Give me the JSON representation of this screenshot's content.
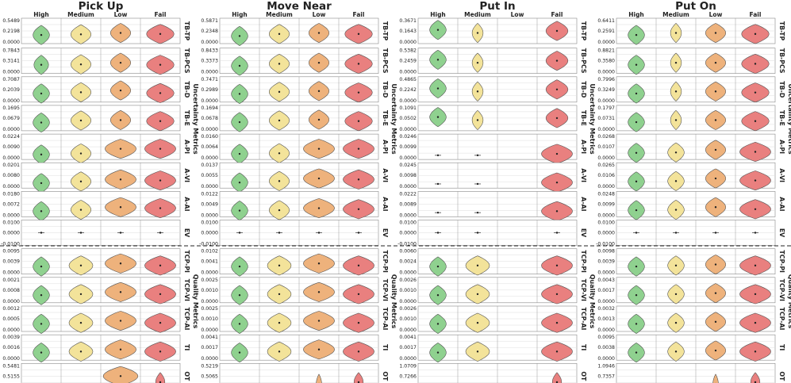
{
  "chart_data": {
    "type": "violin-grid",
    "tasks": [
      "Pick Up",
      "Move Near",
      "Put In",
      "Put On"
    ],
    "categories": [
      "High",
      "Medium",
      "Low",
      "Fail"
    ],
    "colors": {
      "High": "#8fd18f",
      "Medium": "#f3e39a",
      "Low": "#eeb27c",
      "Fail": "#e9807f"
    },
    "group_labels": {
      "uncertainty": "Uncertainty Metrics",
      "quality": "Quality Metrics"
    },
    "metrics": [
      {
        "name": "TB-TP",
        "group": "uncertainty"
      },
      {
        "name": "TB-PCS",
        "group": "uncertainty"
      },
      {
        "name": "TB-D",
        "group": "uncertainty"
      },
      {
        "name": "TB-E",
        "group": "uncertainty"
      },
      {
        "name": "A-PI",
        "group": "uncertainty"
      },
      {
        "name": "A-VI",
        "group": "uncertainty"
      },
      {
        "name": "A-AI",
        "group": "uncertainty"
      },
      {
        "name": "EV",
        "group": "uncertainty"
      },
      {
        "name": "TCP-PI",
        "group": "quality"
      },
      {
        "name": "TCP-VI",
        "group": "quality"
      },
      {
        "name": "TCP-AI",
        "group": "quality"
      },
      {
        "name": "TI",
        "group": "quality"
      },
      {
        "name": "OT",
        "group": "quality"
      }
    ],
    "ticks": [
      [
        [
          "0.5489",
          "0.2198",
          "0.0000"
        ],
        [
          "0.7843",
          "0.3141",
          "0.0000"
        ],
        [
          "0.7087",
          "0.2039",
          "0.0000"
        ],
        [
          "0.1695",
          "0.0679",
          "0.0000"
        ],
        [
          "0.0224",
          "0.0090",
          "0.0000"
        ],
        [
          "0.0201",
          "0.0080",
          "0.0000"
        ],
        [
          "0.0180",
          "0.0072",
          "0.0000"
        ],
        [
          "0.0100",
          "0.0000",
          "-0.0100"
        ],
        [
          "0.0095",
          "0.0039",
          "0.0000"
        ],
        [
          "0.0021",
          "0.0008",
          "0.0000"
        ],
        [
          "0.0012",
          "0.0005",
          "0.0000"
        ],
        [
          "0.0039",
          "0.0016",
          "0.0000"
        ],
        [
          "0.5481",
          "0.5155",
          "0.4830"
        ]
      ],
      [
        [
          "0.5871",
          "0.2348",
          "0.0000"
        ],
        [
          "0.8433",
          "0.3373",
          "0.0000"
        ],
        [
          "0.7471",
          "0.2989",
          "0.0000"
        ],
        [
          "0.1694",
          "0.0678",
          "0.0000"
        ],
        [
          "0.0160",
          "0.0064",
          "0.0000"
        ],
        [
          "0.0137",
          "0.0055",
          "0.0000"
        ],
        [
          "0.0122",
          "0.0049",
          "0.0000"
        ],
        [
          "0.0100",
          "0.0000",
          "-0.0100"
        ],
        [
          "0.0102",
          "0.0041",
          "0.0000"
        ],
        [
          "0.0025",
          "0.0010",
          "0.0000"
        ],
        [
          "0.0025",
          "0.0010",
          "0.0000"
        ],
        [
          "0.0041",
          "0.0017",
          "0.0000"
        ],
        [
          "0.5219",
          "0.5065",
          "0.4910"
        ]
      ],
      [
        [
          "0.3671",
          "0.1643",
          "0.0000"
        ],
        [
          "0.5382",
          "0.2459",
          "0.0000"
        ],
        [
          "0.4865",
          "0.2242",
          "0.0000"
        ],
        [
          "0.1091",
          "0.0502",
          "0.0000"
        ],
        [
          "0.0246",
          "0.0099",
          "0.0000"
        ],
        [
          "0.0245",
          "0.0098",
          "0.0000"
        ],
        [
          "0.0222",
          "0.0089",
          "0.0000"
        ],
        [
          "0.0100",
          "0.0000",
          "-0.0100"
        ],
        [
          "0.0060",
          "0.0024",
          "0.0000"
        ],
        [
          "0.0026",
          "0.0010",
          "0.0000"
        ],
        [
          "0.0026",
          "0.0010",
          "0.0000"
        ],
        [
          "0.0041",
          "0.0017",
          "0.0000"
        ],
        [
          "1.0709",
          "0.7266",
          "0.3823"
        ]
      ],
      [
        [
          "0.6411",
          "0.2591",
          "0.0000"
        ],
        [
          "0.8821",
          "0.3580",
          "0.0000"
        ],
        [
          "0.7996",
          "0.3249",
          "0.0000"
        ],
        [
          "0.1797",
          "0.0731",
          "0.0000"
        ],
        [
          "0.0268",
          "0.0107",
          "0.0000"
        ],
        [
          "0.0265",
          "0.0106",
          "0.0000"
        ],
        [
          "0.0248",
          "0.0099",
          "0.0000"
        ],
        [
          "0.0100",
          "0.0000",
          "-0.0100"
        ],
        [
          "0.0098",
          "0.0039",
          "0.0000"
        ],
        [
          "0.0043",
          "0.0017",
          "0.0000"
        ],
        [
          "0.0032",
          "0.0013",
          "0.0000"
        ],
        [
          "0.0095",
          "0.0038",
          "0.0000"
        ],
        [
          "1.0946",
          "0.7357",
          "0.3768"
        ]
      ]
    ],
    "violins": [
      [
        [
          [
            0.3,
            0.45
          ],
          [
            0.33,
            0.55
          ],
          [
            0.4,
            0.55
          ],
          [
            0.35,
            0.75
          ]
        ],
        [
          [
            0.3,
            0.4
          ],
          [
            0.32,
            0.55
          ],
          [
            0.4,
            0.55
          ],
          [
            0.3,
            0.75
          ]
        ],
        [
          [
            0.3,
            0.45
          ],
          [
            0.36,
            0.55
          ],
          [
            0.45,
            0.55
          ],
          [
            0.32,
            0.75
          ]
        ],
        [
          [
            0.28,
            0.45
          ],
          [
            0.38,
            0.55
          ],
          [
            0.4,
            0.55
          ],
          [
            0.35,
            0.75
          ]
        ],
        [
          [
            0.12,
            0.45
          ],
          [
            0.17,
            0.55
          ],
          [
            0.4,
            0.85
          ],
          [
            0.4,
            0.85
          ]
        ],
        [
          [
            0.12,
            0.45
          ],
          [
            0.2,
            0.55
          ],
          [
            0.3,
            0.85
          ],
          [
            0.25,
            0.85
          ]
        ],
        [
          [
            0.15,
            0.45
          ],
          [
            0.22,
            0.55
          ],
          [
            0.35,
            0.85
          ],
          [
            0.3,
            0.85
          ]
        ],
        [
          [
            0.5,
            0.02
          ],
          [
            0.5,
            0.02
          ],
          [
            0.5,
            0.02
          ],
          [
            0.5,
            0.02
          ]
        ],
        [
          [
            0.25,
            0.45
          ],
          [
            0.3,
            0.65
          ],
          [
            0.4,
            0.85
          ],
          [
            0.3,
            0.85
          ]
        ],
        [
          [
            0.25,
            0.45
          ],
          [
            0.3,
            0.65
          ],
          [
            0.4,
            0.85
          ],
          [
            0.3,
            0.85
          ]
        ],
        [
          [
            0.25,
            0.45
          ],
          [
            0.3,
            0.65
          ],
          [
            0.4,
            0.85
          ],
          [
            0.3,
            0.85
          ]
        ],
        [
          [
            0.25,
            0.45
          ],
          [
            0.3,
            0.65
          ],
          [
            0.4,
            0.85
          ],
          [
            0.3,
            0.85
          ]
        ],
        [
          [
            0.1,
            0.03
          ],
          [
            0.1,
            0.03
          ],
          [
            0.5,
            0.95
          ],
          [
            0.2,
            0.25
          ]
        ]
      ],
      [
        [
          [
            0.25,
            0.45
          ],
          [
            0.35,
            0.55
          ],
          [
            0.4,
            0.55
          ],
          [
            0.35,
            0.75
          ]
        ],
        [
          [
            0.25,
            0.45
          ],
          [
            0.35,
            0.55
          ],
          [
            0.4,
            0.55
          ],
          [
            0.35,
            0.75
          ]
        ],
        [
          [
            0.28,
            0.45
          ],
          [
            0.38,
            0.55
          ],
          [
            0.42,
            0.55
          ],
          [
            0.35,
            0.75
          ]
        ],
        [
          [
            0.3,
            0.45
          ],
          [
            0.38,
            0.55
          ],
          [
            0.42,
            0.55
          ],
          [
            0.35,
            0.75
          ]
        ],
        [
          [
            0.15,
            0.45
          ],
          [
            0.18,
            0.55
          ],
          [
            0.4,
            0.85
          ],
          [
            0.4,
            0.85
          ]
        ],
        [
          [
            0.15,
            0.45
          ],
          [
            0.22,
            0.55
          ],
          [
            0.35,
            0.85
          ],
          [
            0.3,
            0.85
          ]
        ],
        [
          [
            0.18,
            0.45
          ],
          [
            0.2,
            0.55
          ],
          [
            0.3,
            0.85
          ],
          [
            0.25,
            0.85
          ]
        ],
        [
          [
            0.5,
            0.02
          ],
          [
            0.5,
            0.02
          ],
          [
            0.5,
            0.02
          ],
          [
            0.5,
            0.02
          ]
        ],
        [
          [
            0.25,
            0.45
          ],
          [
            0.3,
            0.65
          ],
          [
            0.4,
            0.85
          ],
          [
            0.3,
            0.85
          ]
        ],
        [
          [
            0.25,
            0.45
          ],
          [
            0.3,
            0.65
          ],
          [
            0.4,
            0.85
          ],
          [
            0.3,
            0.85
          ]
        ],
        [
          [
            0.25,
            0.45
          ],
          [
            0.3,
            0.65
          ],
          [
            0.4,
            0.85
          ],
          [
            0.3,
            0.85
          ]
        ],
        [
          [
            0.25,
            0.45
          ],
          [
            0.3,
            0.65
          ],
          [
            0.4,
            0.85
          ],
          [
            0.3,
            0.85
          ]
        ],
        [
          [
            0.1,
            0.03
          ],
          [
            0.1,
            0.03
          ],
          [
            0.12,
            0.15
          ],
          [
            0.2,
            0.25
          ]
        ]
      ],
      [
        [
          [
            0.55,
            0.45
          ],
          [
            0.4,
            0.3
          ],
          [
            0.5,
            0.0
          ],
          [
            0.5,
            0.6
          ]
        ],
        [
          [
            0.55,
            0.45
          ],
          [
            0.4,
            0.3
          ],
          [
            0.5,
            0.0
          ],
          [
            0.5,
            0.6
          ]
        ],
        [
          [
            0.55,
            0.45
          ],
          [
            0.4,
            0.3
          ],
          [
            0.5,
            0.0
          ],
          [
            0.5,
            0.6
          ]
        ],
        [
          [
            0.55,
            0.45
          ],
          [
            0.4,
            0.3
          ],
          [
            0.5,
            0.0
          ],
          [
            0.5,
            0.6
          ]
        ],
        [
          [
            0.08,
            0.03
          ],
          [
            0.08,
            0.03
          ],
          [
            0.5,
            0.0
          ],
          [
            0.15,
            0.85
          ]
        ],
        [
          [
            0.08,
            0.03
          ],
          [
            0.08,
            0.03
          ],
          [
            0.5,
            0.0
          ],
          [
            0.15,
            0.85
          ]
        ],
        [
          [
            0.08,
            0.03
          ],
          [
            0.08,
            0.03
          ],
          [
            0.5,
            0.0
          ],
          [
            0.15,
            0.85
          ]
        ],
        [
          [
            0.5,
            0.02
          ],
          [
            0.5,
            0.02
          ],
          [
            0.5,
            0.0
          ],
          [
            0.5,
            0.02
          ]
        ],
        [
          [
            0.25,
            0.45
          ],
          [
            0.3,
            0.65
          ],
          [
            0.5,
            0.0
          ],
          [
            0.3,
            0.85
          ]
        ],
        [
          [
            0.25,
            0.45
          ],
          [
            0.3,
            0.65
          ],
          [
            0.5,
            0.0
          ],
          [
            0.3,
            0.85
          ]
        ],
        [
          [
            0.25,
            0.45
          ],
          [
            0.3,
            0.65
          ],
          [
            0.5,
            0.0
          ],
          [
            0.3,
            0.85
          ]
        ],
        [
          [
            0.25,
            0.45
          ],
          [
            0.3,
            0.65
          ],
          [
            0.5,
            0.0
          ],
          [
            0.3,
            0.85
          ]
        ],
        [
          [
            0.1,
            0.03
          ],
          [
            0.1,
            0.03
          ],
          [
            0.5,
            0.0
          ],
          [
            0.2,
            0.25
          ]
        ]
      ],
      [
        [
          [
            0.3,
            0.45
          ],
          [
            0.4,
            0.3
          ],
          [
            0.4,
            0.55
          ],
          [
            0.35,
            0.75
          ]
        ],
        [
          [
            0.3,
            0.45
          ],
          [
            0.4,
            0.3
          ],
          [
            0.4,
            0.55
          ],
          [
            0.35,
            0.75
          ]
        ],
        [
          [
            0.3,
            0.45
          ],
          [
            0.4,
            0.3
          ],
          [
            0.4,
            0.55
          ],
          [
            0.35,
            0.75
          ]
        ],
        [
          [
            0.3,
            0.45
          ],
          [
            0.4,
            0.3
          ],
          [
            0.4,
            0.55
          ],
          [
            0.35,
            0.75
          ]
        ],
        [
          [
            0.2,
            0.45
          ],
          [
            0.22,
            0.45
          ],
          [
            0.35,
            0.55
          ],
          [
            0.25,
            0.85
          ]
        ],
        [
          [
            0.2,
            0.45
          ],
          [
            0.22,
            0.45
          ],
          [
            0.35,
            0.55
          ],
          [
            0.25,
            0.85
          ]
        ],
        [
          [
            0.2,
            0.45
          ],
          [
            0.22,
            0.45
          ],
          [
            0.35,
            0.55
          ],
          [
            0.25,
            0.85
          ]
        ],
        [
          [
            0.5,
            0.02
          ],
          [
            0.5,
            0.02
          ],
          [
            0.5,
            0.02
          ],
          [
            0.5,
            0.02
          ]
        ],
        [
          [
            0.25,
            0.45
          ],
          [
            0.3,
            0.45
          ],
          [
            0.35,
            0.55
          ],
          [
            0.3,
            0.85
          ]
        ],
        [
          [
            0.25,
            0.45
          ],
          [
            0.3,
            0.45
          ],
          [
            0.35,
            0.55
          ],
          [
            0.3,
            0.85
          ]
        ],
        [
          [
            0.25,
            0.45
          ],
          [
            0.3,
            0.45
          ],
          [
            0.35,
            0.55
          ],
          [
            0.3,
            0.85
          ]
        ],
        [
          [
            0.25,
            0.45
          ],
          [
            0.3,
            0.45
          ],
          [
            0.35,
            0.55
          ],
          [
            0.3,
            0.85
          ]
        ],
        [
          [
            0.1,
            0.03
          ],
          [
            0.1,
            0.03
          ],
          [
            0.12,
            0.15
          ],
          [
            0.2,
            0.25
          ]
        ]
      ]
    ]
  }
}
